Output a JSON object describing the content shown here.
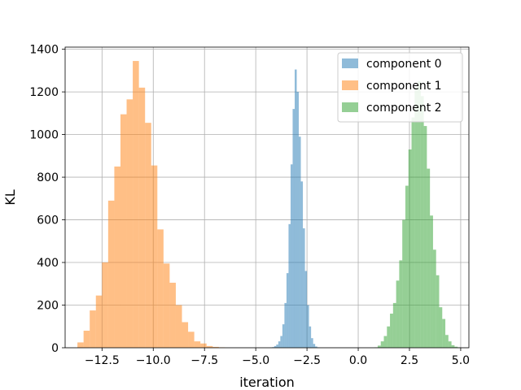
{
  "chart_data": {
    "type": "bar",
    "subtype": "histogram",
    "title": "",
    "xlabel": "iteration",
    "ylabel": "KL",
    "xlim": [
      -14.3,
      5.4
    ],
    "ylim": [
      0,
      1410
    ],
    "grid": true,
    "legend_position": "top-right",
    "x_ticks": [
      -12.5,
      -10.0,
      -7.5,
      -5.0,
      -2.5,
      0.0,
      2.5,
      5.0
    ],
    "x_tick_labels": [
      "−12.5",
      "−10.0",
      "−7.5",
      "−5.0",
      "−2.5",
      "0.0",
      "2.5",
      "5.0"
    ],
    "y_ticks": [
      0,
      200,
      400,
      600,
      800,
      1000,
      1200,
      1400
    ],
    "y_tick_labels": [
      "0",
      "200",
      "400",
      "600",
      "800",
      "1000",
      "1200",
      "1400"
    ],
    "series": [
      {
        "name": "component 0",
        "color": "#1f77b4",
        "bin_start": -4.3,
        "bin_width": 0.1,
        "counts": [
          1,
          3,
          8,
          15,
          30,
          55,
          110,
          210,
          350,
          580,
          860,
          1120,
          1305,
          1200,
          990,
          780,
          560,
          360,
          200,
          100,
          45,
          18,
          6,
          2
        ]
      },
      {
        "name": "component 1",
        "color": "#ff7f0e",
        "bin_start": -13.7,
        "bin_width": 0.3,
        "counts": [
          25,
          80,
          175,
          245,
          400,
          690,
          850,
          1095,
          1165,
          1345,
          1220,
          1055,
          855,
          555,
          395,
          305,
          200,
          120,
          75,
          30,
          20,
          8,
          4,
          2
        ]
      },
      {
        "name": "component 2",
        "color": "#2ca02c",
        "bin_start": 0.8,
        "bin_width": 0.15,
        "counts": [
          2,
          10,
          30,
          55,
          100,
          160,
          210,
          315,
          410,
          600,
          760,
          930,
          1080,
          1220,
          1250,
          1180,
          1040,
          840,
          620,
          460,
          340,
          190,
          135,
          60,
          30,
          12,
          5,
          2
        ]
      }
    ]
  }
}
